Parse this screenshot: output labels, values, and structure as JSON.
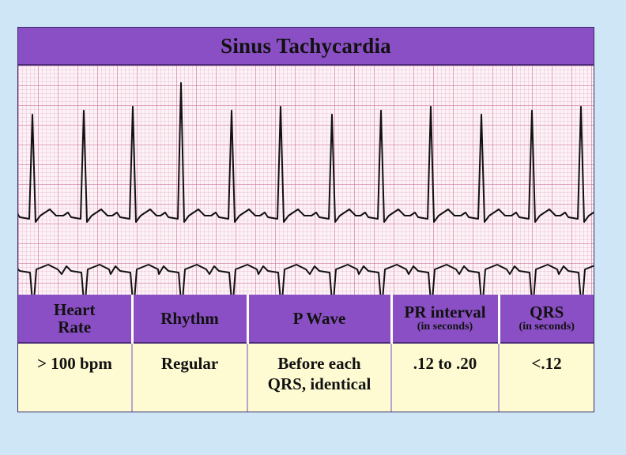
{
  "title": "Sinus Tachycardia",
  "colors": {
    "header_bg": "#8a4fc4",
    "cell_bg": "#fefbd3",
    "page_bg": "#cfe6f7",
    "grid": "#ce78a0",
    "trace": "#111111"
  },
  "table": {
    "columns": [
      {
        "label": "Heart Rate",
        "sublabel": ""
      },
      {
        "label": "Rhythm",
        "sublabel": ""
      },
      {
        "label": "P Wave",
        "sublabel": ""
      },
      {
        "label": "PR interval",
        "sublabel": "(in seconds)"
      },
      {
        "label": "QRS",
        "sublabel": "(in seconds)"
      }
    ],
    "values": [
      "> 100 bpm",
      "Regular",
      "Before each QRS, identical",
      ".12 to .20",
      "<.12"
    ]
  }
}
